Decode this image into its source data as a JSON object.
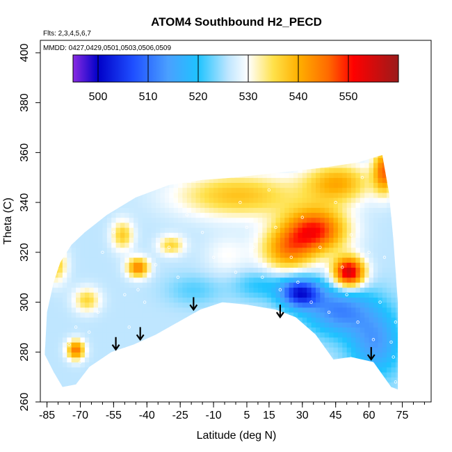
{
  "chart_data": {
    "type": "heatmap",
    "title": "ATOM4 Southbound H2_PECD",
    "flights_note": "Flts: 2,3,4,5,6,7",
    "dates_note": "MMDD: 0427,0429,0501,0503,0506,0509",
    "xlabel": "Latitude (deg N)",
    "ylabel": "Theta (C)",
    "xlim": [
      -88,
      88
    ],
    "ylim": [
      260,
      405
    ],
    "x_ticks": [
      -85,
      -70,
      -55,
      -40,
      -25,
      -10,
      5,
      15,
      30,
      45,
      60,
      75
    ],
    "y_ticks": [
      260,
      280,
      300,
      320,
      340,
      360,
      380,
      400
    ],
    "colorbar": {
      "range": [
        495,
        560
      ],
      "ticks": [
        500,
        510,
        520,
        530,
        540,
        550
      ],
      "stops": [
        {
          "value": 495,
          "color": "#8a2be2"
        },
        {
          "value": 500,
          "color": "#0000c8"
        },
        {
          "value": 507,
          "color": "#1f4fff"
        },
        {
          "value": 514,
          "color": "#4aa0ff"
        },
        {
          "value": 520,
          "color": "#1ec3ff"
        },
        {
          "value": 526,
          "color": "#bfe6ff"
        },
        {
          "value": 530,
          "color": "#ffffff"
        },
        {
          "value": 535,
          "color": "#ffe14a"
        },
        {
          "value": 540,
          "color": "#ffb000"
        },
        {
          "value": 546,
          "color": "#ff6a00"
        },
        {
          "value": 551,
          "color": "#ff0000"
        },
        {
          "value": 560,
          "color": "#9b1b1b"
        }
      ]
    },
    "field_outline": [
      [
        -86,
        279
      ],
      [
        -85,
        296
      ],
      [
        -82,
        308
      ],
      [
        -79,
        316
      ],
      [
        -74,
        323
      ],
      [
        -68,
        328
      ],
      [
        -58,
        335
      ],
      [
        -45,
        342
      ],
      [
        -30,
        347
      ],
      [
        -15,
        349
      ],
      [
        0,
        350
      ],
      [
        20,
        352
      ],
      [
        40,
        354
      ],
      [
        55,
        356
      ],
      [
        62,
        358
      ],
      [
        66,
        359
      ],
      [
        69,
        344
      ],
      [
        71,
        325
      ],
      [
        73,
        300
      ],
      [
        73,
        265
      ],
      [
        70,
        266
      ],
      [
        62,
        276
      ],
      [
        52,
        278
      ],
      [
        44,
        277
      ],
      [
        36,
        287
      ],
      [
        27,
        294
      ],
      [
        18,
        297
      ],
      [
        5,
        299
      ],
      [
        -6,
        300
      ],
      [
        -16,
        297
      ],
      [
        -26,
        292
      ],
      [
        -36,
        287
      ],
      [
        -46,
        283
      ],
      [
        -56,
        280
      ],
      [
        -66,
        274
      ],
      [
        -72,
        267
      ],
      [
        -78,
        266
      ],
      [
        -82,
        272
      ]
    ],
    "field_base_value": 526,
    "field_features": [
      {
        "x": 35,
        "y": 328,
        "value": 549,
        "rx": 14,
        "ry": 9
      },
      {
        "x": 50,
        "y": 311,
        "value": 556,
        "rx": 7,
        "ry": 6
      },
      {
        "x": 22,
        "y": 320,
        "value": 541,
        "rx": 12,
        "ry": 9
      },
      {
        "x": 0,
        "y": 342,
        "value": 538,
        "rx": 28,
        "ry": 9
      },
      {
        "x": 45,
        "y": 347,
        "value": 540,
        "rx": 15,
        "ry": 8
      },
      {
        "x": 66,
        "y": 352,
        "value": 545,
        "rx": 5,
        "ry": 9
      },
      {
        "x": 28,
        "y": 303,
        "value": 503,
        "rx": 9,
        "ry": 6
      },
      {
        "x": 45,
        "y": 296,
        "value": 512,
        "rx": 15,
        "ry": 10
      },
      {
        "x": 62,
        "y": 283,
        "value": 514,
        "rx": 12,
        "ry": 14
      },
      {
        "x": 10,
        "y": 306,
        "value": 520,
        "rx": 12,
        "ry": 6
      },
      {
        "x": -20,
        "y": 304,
        "value": 522,
        "rx": 12,
        "ry": 6
      },
      {
        "x": -45,
        "y": 313,
        "value": 544,
        "rx": 5,
        "ry": 4
      },
      {
        "x": -73,
        "y": 280,
        "value": 545,
        "rx": 4,
        "ry": 4
      },
      {
        "x": -82,
        "y": 314,
        "value": 537,
        "rx": 5,
        "ry": 7
      },
      {
        "x": -68,
        "y": 300,
        "value": 536,
        "rx": 6,
        "ry": 5
      },
      {
        "x": -52,
        "y": 326,
        "value": 537,
        "rx": 5,
        "ry": 6
      },
      {
        "x": -30,
        "y": 322,
        "value": 536,
        "rx": 6,
        "ry": 4
      },
      {
        "x": -5,
        "y": 318,
        "value": 530,
        "rx": 10,
        "ry": 8
      }
    ],
    "sample_points": [
      [
        -75,
        283
      ],
      [
        -72,
        290
      ],
      [
        -70,
        276
      ],
      [
        -66,
        288
      ],
      [
        -62,
        296
      ],
      [
        -60,
        320
      ],
      [
        -55,
        328
      ],
      [
        -50,
        303
      ],
      [
        -48,
        290
      ],
      [
        -44,
        305
      ],
      [
        -41,
        300
      ],
      [
        -36,
        315
      ],
      [
        -30,
        322
      ],
      [
        -26,
        310
      ],
      [
        -22,
        335
      ],
      [
        -15,
        328
      ],
      [
        -10,
        318
      ],
      [
        0,
        312
      ],
      [
        2,
        340
      ],
      [
        5,
        330
      ],
      [
        8,
        322
      ],
      [
        12,
        310
      ],
      [
        15,
        345
      ],
      [
        18,
        330
      ],
      [
        20,
        305
      ],
      [
        25,
        318
      ],
      [
        28,
        308
      ],
      [
        30,
        334
      ],
      [
        34,
        300
      ],
      [
        38,
        322
      ],
      [
        42,
        296
      ],
      [
        45,
        340
      ],
      [
        48,
        314
      ],
      [
        50,
        303
      ],
      [
        52,
        327
      ],
      [
        55,
        292
      ],
      [
        57,
        350
      ],
      [
        60,
        320
      ],
      [
        62,
        285
      ],
      [
        65,
        300
      ],
      [
        67,
        318
      ],
      [
        70,
        284
      ],
      [
        71,
        278
      ],
      [
        72,
        292
      ],
      [
        72,
        268
      ]
    ],
    "arrows": [
      {
        "x": -54,
        "y_start": 286,
        "y_end": 281
      },
      {
        "x": -43,
        "y_start": 290,
        "y_end": 285
      },
      {
        "x": -19,
        "y_start": 302,
        "y_end": 297
      },
      {
        "x": 20,
        "y_start": 299,
        "y_end": 294
      },
      {
        "x": 61,
        "y_start": 282,
        "y_end": 277
      }
    ]
  }
}
